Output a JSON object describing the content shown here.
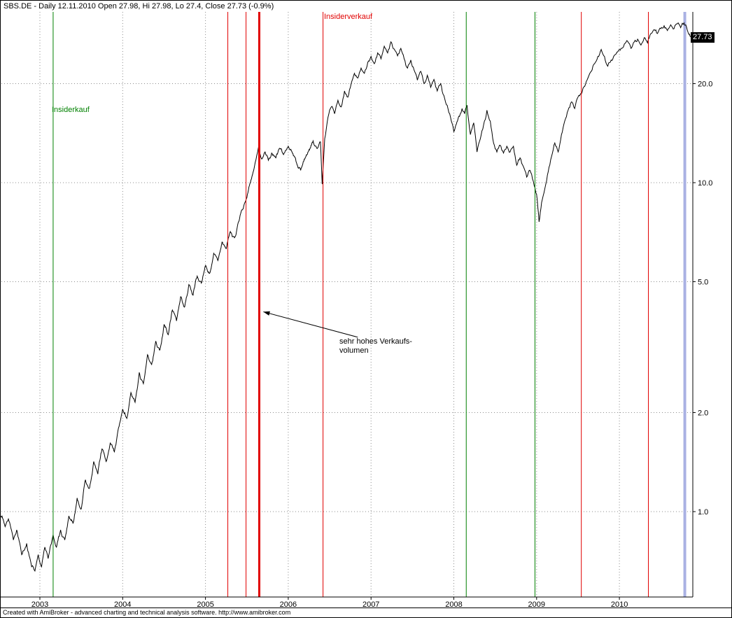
{
  "window": {
    "title": "SBS.DE - Daily 12.11.2010 Open 27.98, Hi 27.98, Lo 27.4, Close 27.73 (-0.9%)",
    "footer": "Created with AmiBroker - advanced charting and technical analysis software. http://www.amibroker.com"
  },
  "labels": {
    "insider_sell": "Insiderverkauf",
    "insider_buy": "Insiderkauf",
    "annotation_line1": "sehr hohes Verkaufs-",
    "annotation_line2": "volumen"
  },
  "price_tag": "27.73",
  "colors": {
    "buy": "#008000",
    "sell": "#e10000",
    "selection": "#a9b1e3",
    "grid": "#8c8c8c",
    "price": "#000000",
    "tag_bg": "#000000",
    "tag_fg": "#ffffff"
  },
  "chart_data": {
    "type": "line",
    "symbol": "SBS.DE",
    "interval": "Daily",
    "date": "12.11.2010",
    "ohlc": {
      "open": 27.98,
      "high": 27.98,
      "low": 27.4,
      "close": 27.73,
      "change_pct": -0.9
    },
    "x_axis": {
      "ticks": [
        2003,
        2004,
        2005,
        2006,
        2007,
        2008,
        2009,
        2010
      ]
    },
    "y_axis": {
      "scale": "log",
      "ticks": [
        20,
        10,
        5,
        2,
        1
      ],
      "tick_labels": [
        "20.0",
        "10.0",
        "5.0",
        "2.0",
        "1.0"
      ],
      "range": [
        0.55,
        35
      ]
    },
    "series": [
      {
        "name": "SBS.DE close",
        "points": [
          [
            2002.53,
            0.97
          ],
          [
            2002.58,
            0.9
          ],
          [
            2002.62,
            0.95
          ],
          [
            2002.68,
            0.82
          ],
          [
            2002.72,
            0.88
          ],
          [
            2002.78,
            0.74
          ],
          [
            2002.84,
            0.8
          ],
          [
            2002.9,
            0.68
          ],
          [
            2002.94,
            0.66
          ],
          [
            2002.98,
            0.74
          ],
          [
            2003.02,
            0.68
          ],
          [
            2003.06,
            0.78
          ],
          [
            2003.1,
            0.72
          ],
          [
            2003.16,
            0.85
          ],
          [
            2003.2,
            0.78
          ],
          [
            2003.25,
            0.88
          ],
          [
            2003.3,
            0.82
          ],
          [
            2003.35,
            0.97
          ],
          [
            2003.4,
            0.92
          ],
          [
            2003.45,
            1.1
          ],
          [
            2003.5,
            1.02
          ],
          [
            2003.55,
            1.25
          ],
          [
            2003.6,
            1.18
          ],
          [
            2003.65,
            1.42
          ],
          [
            2003.7,
            1.3
          ],
          [
            2003.75,
            1.55
          ],
          [
            2003.8,
            1.42
          ],
          [
            2003.85,
            1.62
          ],
          [
            2003.9,
            1.52
          ],
          [
            2003.95,
            1.8
          ],
          [
            2004,
            2.05
          ],
          [
            2004.05,
            1.92
          ],
          [
            2004.1,
            2.3
          ],
          [
            2004.15,
            2.15
          ],
          [
            2004.2,
            2.65
          ],
          [
            2004.25,
            2.45
          ],
          [
            2004.3,
            3
          ],
          [
            2004.35,
            2.8
          ],
          [
            2004.4,
            3.3
          ],
          [
            2004.45,
            3.1
          ],
          [
            2004.5,
            3.7
          ],
          [
            2004.55,
            3.45
          ],
          [
            2004.6,
            4.1
          ],
          [
            2004.65,
            3.8
          ],
          [
            2004.7,
            4.5
          ],
          [
            2004.75,
            4.2
          ],
          [
            2004.8,
            4.9
          ],
          [
            2004.85,
            4.55
          ],
          [
            2004.9,
            5.2
          ],
          [
            2004.95,
            4.95
          ],
          [
            2005,
            5.6
          ],
          [
            2005.05,
            5.3
          ],
          [
            2005.1,
            6.1
          ],
          [
            2005.15,
            5.8
          ],
          [
            2005.2,
            6.6
          ],
          [
            2005.25,
            6.3
          ],
          [
            2005.3,
            7.1
          ],
          [
            2005.35,
            6.8
          ],
          [
            2005.4,
            7.6
          ],
          [
            2005.45,
            8.3
          ],
          [
            2005.5,
            9
          ],
          [
            2005.55,
            10.2
          ],
          [
            2005.6,
            11.5
          ],
          [
            2005.64,
            12.8
          ],
          [
            2005.68,
            11.8
          ],
          [
            2005.72,
            12.4
          ],
          [
            2005.76,
            11.7
          ],
          [
            2005.8,
            12.3
          ],
          [
            2005.85,
            11.9
          ],
          [
            2005.9,
            12.7
          ],
          [
            2005.95,
            12.3
          ],
          [
            2006,
            12.9
          ],
          [
            2006.05,
            12.3
          ],
          [
            2006.1,
            11.5
          ],
          [
            2006.15,
            10.9
          ],
          [
            2006.2,
            11.8
          ],
          [
            2006.25,
            12.6
          ],
          [
            2006.3,
            13.4
          ],
          [
            2006.35,
            12.7
          ],
          [
            2006.39,
            13.3
          ],
          [
            2006.41,
            9.9
          ],
          [
            2006.44,
            13.6
          ],
          [
            2006.48,
            15.8
          ],
          [
            2006.52,
            17
          ],
          [
            2006.56,
            16.2
          ],
          [
            2006.6,
            17.8
          ],
          [
            2006.64,
            17
          ],
          [
            2006.68,
            19
          ],
          [
            2006.72,
            18.2
          ],
          [
            2006.76,
            20
          ],
          [
            2006.8,
            21.5
          ],
          [
            2006.84,
            20.8
          ],
          [
            2006.88,
            22.3
          ],
          [
            2006.92,
            21.5
          ],
          [
            2006.96,
            23.2
          ],
          [
            2007,
            24.2
          ],
          [
            2007.04,
            23
          ],
          [
            2007.08,
            24.8
          ],
          [
            2007.12,
            23.8
          ],
          [
            2007.16,
            26
          ],
          [
            2007.2,
            24.8
          ],
          [
            2007.24,
            26.8
          ],
          [
            2007.28,
            25.5
          ],
          [
            2007.32,
            24.3
          ],
          [
            2007.36,
            25.6
          ],
          [
            2007.4,
            23.8
          ],
          [
            2007.44,
            22.3
          ],
          [
            2007.48,
            23.6
          ],
          [
            2007.52,
            22
          ],
          [
            2007.56,
            20.5
          ],
          [
            2007.6,
            21.8
          ],
          [
            2007.64,
            20
          ],
          [
            2007.68,
            21.2
          ],
          [
            2007.72,
            19.5
          ],
          [
            2007.76,
            20.6
          ],
          [
            2007.8,
            19
          ],
          [
            2007.84,
            20
          ],
          [
            2007.88,
            18.4
          ],
          [
            2007.92,
            17.2
          ],
          [
            2007.96,
            15.8
          ],
          [
            2008,
            14.3
          ],
          [
            2008.05,
            15.6
          ],
          [
            2008.1,
            16.8
          ],
          [
            2008.13,
            16.2
          ],
          [
            2008.16,
            17.2
          ],
          [
            2008.2,
            14
          ],
          [
            2008.24,
            15.2
          ],
          [
            2008.28,
            12.4
          ],
          [
            2008.32,
            13.6
          ],
          [
            2008.36,
            15
          ],
          [
            2008.4,
            16.6
          ],
          [
            2008.44,
            15.4
          ],
          [
            2008.48,
            13.2
          ],
          [
            2008.52,
            12.4
          ],
          [
            2008.56,
            13
          ],
          [
            2008.6,
            12.3
          ],
          [
            2008.64,
            12.9
          ],
          [
            2008.68,
            12.4
          ],
          [
            2008.72,
            12.9
          ],
          [
            2008.76,
            11.3
          ],
          [
            2008.8,
            11.9
          ],
          [
            2008.84,
            11.2
          ],
          [
            2008.88,
            10.4
          ],
          [
            2008.92,
            10.9
          ],
          [
            2008.96,
            10.1
          ],
          [
            2009,
            9.2
          ],
          [
            2009.03,
            7.6
          ],
          [
            2009.06,
            8.7
          ],
          [
            2009.1,
            9.6
          ],
          [
            2009.14,
            10.8
          ],
          [
            2009.18,
            12
          ],
          [
            2009.22,
            13.2
          ],
          [
            2009.26,
            12.4
          ],
          [
            2009.3,
            14
          ],
          [
            2009.34,
            15.4
          ],
          [
            2009.38,
            16.6
          ],
          [
            2009.42,
            17.6
          ],
          [
            2009.46,
            16.8
          ],
          [
            2009.5,
            18.2
          ],
          [
            2009.54,
            18.6
          ],
          [
            2009.58,
            19.6
          ],
          [
            2009.62,
            20.8
          ],
          [
            2009.66,
            21.8
          ],
          [
            2009.7,
            23
          ],
          [
            2009.74,
            24.2
          ],
          [
            2009.78,
            25.4
          ],
          [
            2009.82,
            24.2
          ],
          [
            2009.86,
            22.6
          ],
          [
            2009.9,
            23.6
          ],
          [
            2009.94,
            24.4
          ],
          [
            2009.98,
            25
          ],
          [
            2010.02,
            25.6
          ],
          [
            2010.06,
            26.4
          ],
          [
            2010.1,
            26.9
          ],
          [
            2010.14,
            25.6
          ],
          [
            2010.18,
            26.8
          ],
          [
            2010.22,
            27.3
          ],
          [
            2010.26,
            26.2
          ],
          [
            2010.3,
            27.6
          ],
          [
            2010.34,
            26.6
          ],
          [
            2010.38,
            28.4
          ],
          [
            2010.42,
            29.2
          ],
          [
            2010.46,
            28.4
          ],
          [
            2010.5,
            29.4
          ],
          [
            2010.54,
            30
          ],
          [
            2010.58,
            29
          ],
          [
            2010.62,
            30.2
          ],
          [
            2010.66,
            29.4
          ],
          [
            2010.7,
            30.4
          ],
          [
            2010.74,
            29.6
          ],
          [
            2010.78,
            30.6
          ],
          [
            2010.81,
            29.8
          ],
          [
            2010.83,
            28.6
          ],
          [
            2010.86,
            27.73
          ]
        ]
      }
    ],
    "events": [
      {
        "year": 2003.16,
        "kind": "insider-buy"
      },
      {
        "year": 2005.27,
        "kind": "insider-sell"
      },
      {
        "year": 2005.49,
        "kind": "insider-sell"
      },
      {
        "year": 2005.65,
        "kind": "insider-sell",
        "width": 3
      },
      {
        "year": 2006.42,
        "kind": "insider-sell"
      },
      {
        "year": 2008.15,
        "kind": "insider-buy"
      },
      {
        "year": 2008.98,
        "kind": "insider-buy"
      },
      {
        "year": 2009.54,
        "kind": "insider-sell"
      },
      {
        "year": 2010.35,
        "kind": "insider-sell"
      },
      {
        "year": 2010.79,
        "kind": "selected-bar",
        "width": 4
      }
    ],
    "annotation": {
      "arrow_tail": [
        2006.84,
        3.39
      ],
      "arrow_tip": [
        2005.7,
        4.05
      ]
    },
    "last_price": 27.73
  }
}
